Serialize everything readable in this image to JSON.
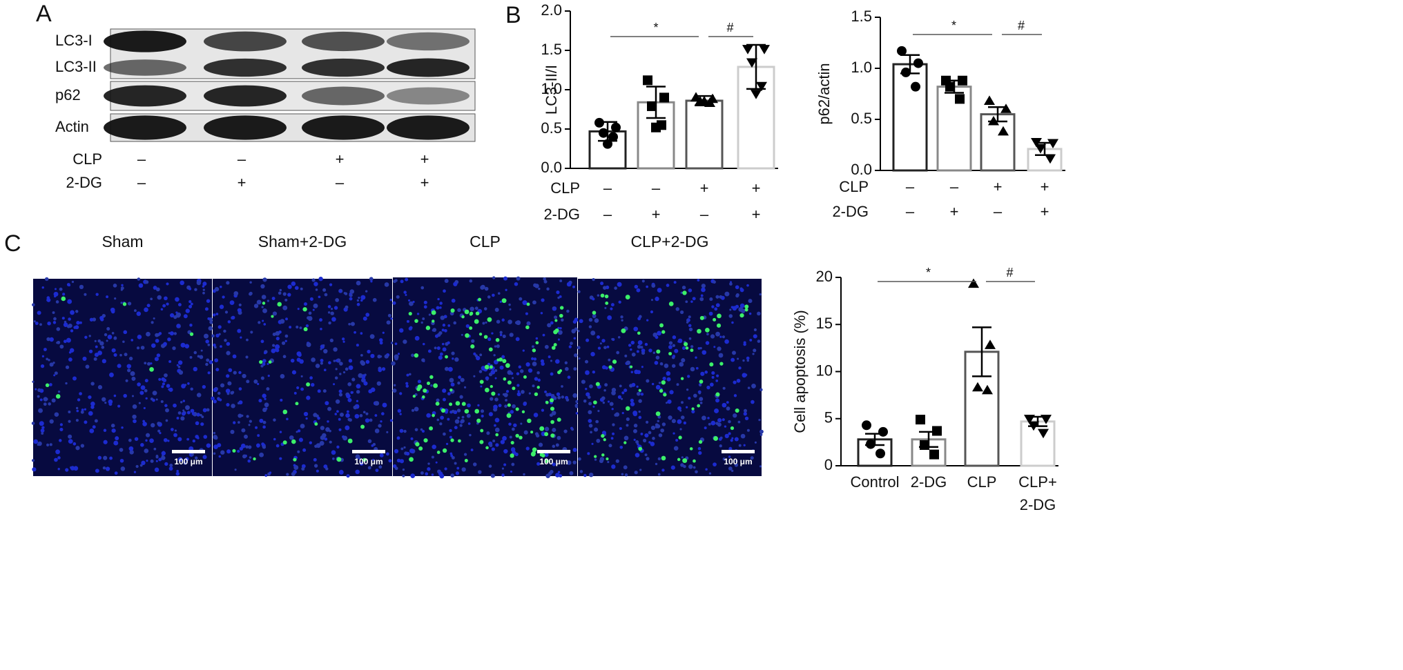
{
  "panel_labels": [
    "A",
    "B",
    "C"
  ],
  "blot": {
    "rows": [
      "LC3-I",
      "LC3-II",
      "p62",
      "Actin"
    ],
    "conditions": [
      {
        "label": "CLP",
        "signs": [
          "–",
          "–",
          "+",
          "+"
        ]
      },
      {
        "label": "2-DG",
        "signs": [
          "–",
          "+",
          "–",
          "+"
        ]
      }
    ]
  },
  "micrographs": {
    "titles": [
      "Sham",
      "Sham+2-DG",
      "CLP",
      "CLP+2-DG"
    ],
    "scale_bar": "100 μm"
  },
  "chart_data": [
    {
      "type": "bar",
      "ylabel": "LC3-II/I",
      "ylim": [
        0,
        2
      ],
      "yticks": [
        {
          "value": 0,
          "label": "0.0"
        },
        {
          "value": 0.5,
          "label": "0.5"
        },
        {
          "value": 1,
          "label": "1.0"
        },
        {
          "value": 1.5,
          "label": "1.5"
        },
        {
          "value": 2,
          "label": "2.0"
        }
      ],
      "values": [
        0.47,
        0.84,
        0.86,
        1.29
      ],
      "errors": [
        0.12,
        0.2,
        0.06,
        0.28
      ],
      "points": [
        [
          0.58,
          0.52,
          0.45,
          0.4,
          0.31
        ],
        [
          1.12,
          0.9,
          0.79,
          0.55,
          0.52
        ],
        [
          0.9,
          0.88,
          0.85,
          0.83,
          0.85
        ],
        [
          1.52,
          1.52,
          1.35,
          1.05,
          0.95
        ]
      ],
      "colors": [
        "#222222",
        "#888888",
        "#555555",
        "#cccccc"
      ],
      "conditions": [
        {
          "label": "CLP",
          "signs": [
            "–",
            "–",
            "+",
            "+"
          ]
        },
        {
          "label": "2-DG",
          "signs": [
            "–",
            "+",
            "–",
            "+"
          ]
        }
      ],
      "annotations": [
        "*",
        "#"
      ]
    },
    {
      "type": "bar",
      "ylabel": "p62/actin",
      "ylim": [
        0,
        1.5
      ],
      "yticks": [
        {
          "value": 0,
          "label": "0.0"
        },
        {
          "value": 0.5,
          "label": "0.5"
        },
        {
          "value": 1,
          "label": "1.0"
        },
        {
          "value": 1.5,
          "label": "1.5"
        }
      ],
      "values": [
        1.04,
        0.82,
        0.55,
        0.21
      ],
      "errors": [
        0.09,
        0.06,
        0.07,
        0.06
      ],
      "points": [
        [
          1.17,
          1.05,
          0.96,
          0.82
        ],
        [
          0.88,
          0.88,
          0.82,
          0.7
        ],
        [
          0.68,
          0.6,
          0.48,
          0.38
        ],
        [
          0.28,
          0.27,
          0.22,
          0.12
        ]
      ],
      "colors": [
        "#222222",
        "#888888",
        "#555555",
        "#cccccc"
      ],
      "conditions": [
        {
          "label": "CLP",
          "signs": [
            "–",
            "–",
            "+",
            "+"
          ]
        },
        {
          "label": "2-DG",
          "signs": [
            "–",
            "+",
            "–",
            "+"
          ]
        }
      ],
      "annotations": [
        "*",
        "#"
      ]
    },
    {
      "type": "bar",
      "ylabel": "Cell apoptosis (%)",
      "ylim": [
        0,
        20
      ],
      "yticks": [
        0,
        5,
        10,
        15,
        20
      ],
      "categories": [
        "Control",
        "2-DG",
        "CLP",
        "CLP+\n2-DG"
      ],
      "values": [
        2.8,
        2.8,
        12.1,
        4.7
      ],
      "errors": [
        0.6,
        0.8,
        2.6,
        0.5
      ],
      "points": [
        [
          4.3,
          3.6,
          2.3,
          1.3
        ],
        [
          4.9,
          3.7,
          2.2,
          1.2
        ],
        [
          19.3,
          12.8,
          8.3,
          8.0
        ],
        [
          5.0,
          5.0,
          4.3,
          3.5
        ]
      ],
      "colors": [
        "#222222",
        "#888888",
        "#555555",
        "#cccccc"
      ],
      "annotations": [
        "*",
        "#"
      ]
    }
  ]
}
